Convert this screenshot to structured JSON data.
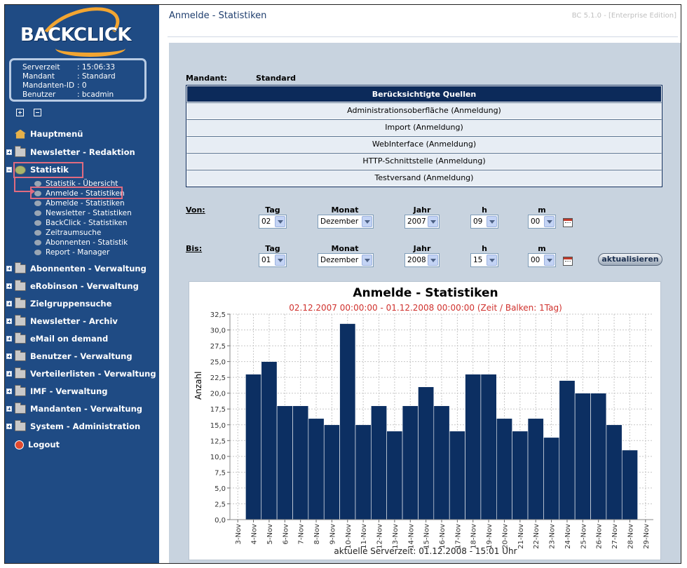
{
  "sidebar": {
    "logo_text": "BACKCLICK",
    "info": [
      {
        "key": "Serverzeit",
        "value": ": 15:06:33"
      },
      {
        "key": "Mandant",
        "value": ": Standard"
      },
      {
        "key": "Mandanten-ID",
        "value": ": 0"
      },
      {
        "key": "Benutzer",
        "value": ": bcadmin"
      }
    ],
    "home": "Hauptmenü",
    "newsletter_redaktion": "Newsletter - Redaktion",
    "statistik": "Statistik",
    "sub": [
      "Statistik - Übersicht",
      "Anmelde - Statistiken",
      "Abmelde - Statistiken",
      "Newsletter - Statistiken",
      "BackClick - Statistiken",
      "Zeitraumsuche",
      "Abonnenten - Statistik",
      "Report - Manager"
    ],
    "items": [
      "Abonnenten - Verwaltung",
      "eRobinson - Verwaltung",
      "Zielgruppensuche",
      "Newsletter - Archiv",
      "eMail on demand",
      "Benutzer - Verwaltung",
      "Verteilerlisten - Verwaltung",
      "IMF - Verwaltung",
      "Mandanten - Verwaltung",
      "System - Administration"
    ],
    "logout": "Logout"
  },
  "header": {
    "title": "Anmelde - Statistiken",
    "version": "BC 5.1.0 - [Enterprise Edition]"
  },
  "mandant": {
    "label": "Mandant:",
    "value": "Standard"
  },
  "sources": {
    "heading": "Berücksichtigte Quellen",
    "rows": [
      "Administrationsoberfläche (Anmeldung)",
      "Import (Anmeldung)",
      "WebInterface (Anmeldung)",
      "HTTP-Schnittstelle (Anmeldung)",
      "Testversand (Anmeldung)"
    ]
  },
  "filters": {
    "cols": {
      "tag": "Tag",
      "monat": "Monat",
      "jahr": "Jahr",
      "h": "h",
      "m": "m"
    },
    "von": {
      "label": "Von:",
      "tag": "02",
      "monat": "Dezember",
      "jahr": "2007",
      "h": "09",
      "m": "00"
    },
    "bis": {
      "label": "Bis:",
      "tag": "01",
      "monat": "Dezember",
      "jahr": "2008",
      "h": "15",
      "m": "00"
    },
    "refresh": "aktualisieren"
  },
  "chart_data": {
    "type": "bar",
    "title": "Anmelde - Statistiken",
    "subtitle": "02.12.2007 00:00:00 - 01.12.2008 00:00:00  (Zeit / Balken: 1Tag)",
    "ylabel": "Anzahl",
    "xlabel": "aktuelle Serverzeit: 01.12.2008 - 15:01 Uhr",
    "ylim": [
      0,
      32.5
    ],
    "yticks": [
      "0,0",
      "2,5",
      "5,0",
      "7,5",
      "10,0",
      "12,5",
      "15,0",
      "17,5",
      "20,0",
      "22,5",
      "25,0",
      "27,5",
      "30,0",
      "32,5"
    ],
    "categories": [
      "3-Nov",
      "4-Nov",
      "5-Nov",
      "6-Nov",
      "7-Nov",
      "8-Nov",
      "9-Nov",
      "10-Nov",
      "11-Nov",
      "12-Nov",
      "13-Nov",
      "14-Nov",
      "15-Nov",
      "16-Nov",
      "17-Nov",
      "18-Nov",
      "19-Nov",
      "20-Nov",
      "21-Nov",
      "22-Nov",
      "23-Nov",
      "24-Nov",
      "25-Nov",
      "26-Nov",
      "27-Nov",
      "28-Nov",
      "29-Nov"
    ],
    "values": [
      0,
      23,
      25,
      18,
      18,
      16,
      15,
      31,
      15,
      18,
      14,
      18,
      21,
      18,
      14,
      23,
      23,
      16,
      14,
      16,
      13,
      22,
      20,
      20,
      15,
      11,
      0
    ],
    "colors": {
      "bar": "#0c2f62",
      "grid": "#c7c7c7"
    }
  }
}
